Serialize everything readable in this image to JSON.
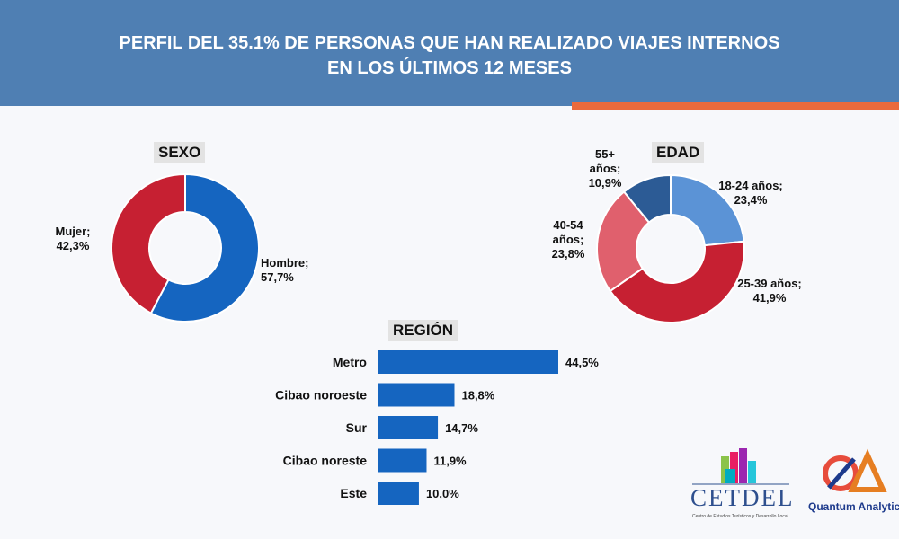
{
  "header": {
    "title_line1": "PERFIL DEL 35.1% DE PERSONAS QUE HAN REALIZADO VIAJES INTERNOS",
    "title_line2": "EN LOS ÚLTIMOS 12 MESES",
    "accent_color": "#ea6a3c",
    "band_color": "#4f7fb3"
  },
  "chart_data": [
    {
      "type": "pie",
      "donut": true,
      "title": "SEXO",
      "slices": [
        {
          "label": "Hombre;",
          "value": 57.7,
          "value_label": "57,7%",
          "color": "#1565c0"
        },
        {
          "label": "Mujer;",
          "value": 42.3,
          "value_label": "42,3%",
          "color": "#c62032"
        }
      ]
    },
    {
      "type": "pie",
      "donut": true,
      "title": "EDAD",
      "slices": [
        {
          "label": "18-24 años;",
          "value": 23.4,
          "value_label": "23,4%",
          "color": "#5b93d6"
        },
        {
          "label": "25-39 años;",
          "value": 41.9,
          "value_label": "41,9%",
          "color": "#c62032"
        },
        {
          "label": "40-54 años;",
          "value": 23.8,
          "value_label": "23,8%",
          "color": "#e0606d"
        },
        {
          "label": "55+ años;",
          "value": 10.9,
          "value_label": "10,9%",
          "color": "#2c5b95"
        }
      ]
    },
    {
      "type": "bar",
      "orientation": "horizontal",
      "title": "REGIÓN",
      "categories": [
        "Metro",
        "Cibao noroeste",
        "Sur",
        "Cibao noreste",
        "Este"
      ],
      "values": [
        44.5,
        18.8,
        14.7,
        11.9,
        10.0
      ],
      "value_labels": [
        "44,5%",
        "18,8%",
        "14,7%",
        "11,9%",
        "10,0%"
      ],
      "color": "#1565c0",
      "grid": false
    }
  ],
  "logos": {
    "cetdel": "CETDEL",
    "cetdel_subtitle": "Centro de Estudios Turísticos y Desarrollo Local",
    "quantum": "Quantum Analytics"
  }
}
